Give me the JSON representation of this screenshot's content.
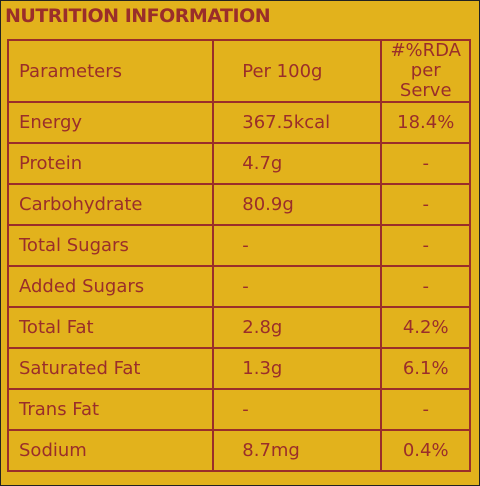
{
  "header": {
    "title": "NUTRITION INFORMATION"
  },
  "table": {
    "columns": [
      "Parameters",
      "Per 100g",
      "#%RDA per Serve"
    ],
    "rows": [
      [
        "Energy",
        "367.5kcal",
        "18.4%"
      ],
      [
        "Protein",
        "4.7g",
        "-"
      ],
      [
        "Carbohydrate",
        "80.9g",
        "-"
      ],
      [
        "Total Sugars",
        "-",
        "-"
      ],
      [
        "Added Sugars",
        "-",
        "-"
      ],
      [
        "Total Fat",
        "2.8g",
        "4.2%"
      ],
      [
        "Saturated Fat",
        "1.3g",
        "6.1%"
      ],
      [
        "Trans Fat",
        "-",
        "-"
      ],
      [
        "Sodium",
        "8.7mg",
        "0.4%"
      ]
    ]
  }
}
